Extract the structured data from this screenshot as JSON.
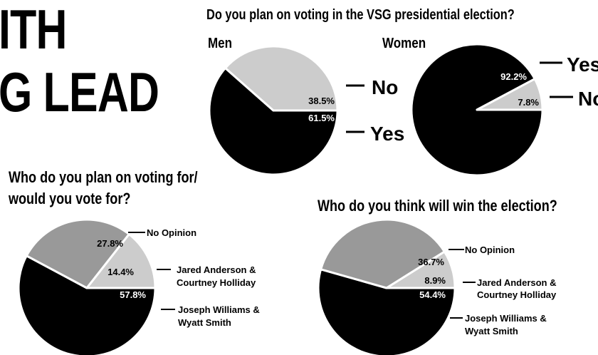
{
  "headline": {
    "line1": "ITH",
    "line2": "G LEAD"
  },
  "colors": {
    "black": "#000000",
    "light_gray": "#cccccc",
    "mid_gray": "#999999",
    "white": "#ffffff"
  },
  "chart_data": [
    {
      "type": "pie",
      "title": "Do you plan on voting in the VSG presidential election?",
      "subtitle": "Men",
      "slices": [
        {
          "label": "No",
          "value": 38.5,
          "value_label": "38.5%",
          "color": "#cccccc"
        },
        {
          "label": "Yes",
          "value": 61.5,
          "value_label": "61.5%",
          "color": "#000000"
        }
      ]
    },
    {
      "type": "pie",
      "title": "Do you plan on voting in the VSG presidential election?",
      "subtitle": "Women",
      "slices": [
        {
          "label": "Yes",
          "value": 92.2,
          "value_label": "92.2%",
          "color": "#000000"
        },
        {
          "label": "No",
          "value": 7.8,
          "value_label": "7.8%",
          "color": "#cccccc"
        }
      ]
    },
    {
      "type": "pie",
      "title": "Who do you plan on voting for/ would you vote for?",
      "title_line1": "Who do you plan on voting for/",
      "title_line2": "would you vote for?",
      "slices": [
        {
          "label": "No Opinion",
          "value": 27.8,
          "value_label": "27.8%",
          "color": "#999999"
        },
        {
          "label_line1": "Jared Anderson &",
          "label_line2": "Courtney Holliday",
          "value": 14.4,
          "value_label": "14.4%",
          "color": "#cccccc"
        },
        {
          "label_line1": "Joseph Williams &",
          "label_line2": "Wyatt Smith",
          "value": 57.8,
          "value_label": "57.8%",
          "color": "#000000"
        }
      ]
    },
    {
      "type": "pie",
      "title": "Who do you think will win the election?",
      "slices": [
        {
          "label": "No Opinion",
          "value": 36.7,
          "value_label": "36.7%",
          "color": "#999999"
        },
        {
          "label_line1": "Jared Anderson &",
          "label_line2": "Courtney Holliday",
          "value": 8.9,
          "value_label": "8.9%",
          "color": "#cccccc"
        },
        {
          "label_line1": "Joseph Williams &",
          "label_line2": "Wyatt Smith",
          "value": 54.4,
          "value_label": "54.4%",
          "color": "#000000"
        }
      ]
    }
  ]
}
